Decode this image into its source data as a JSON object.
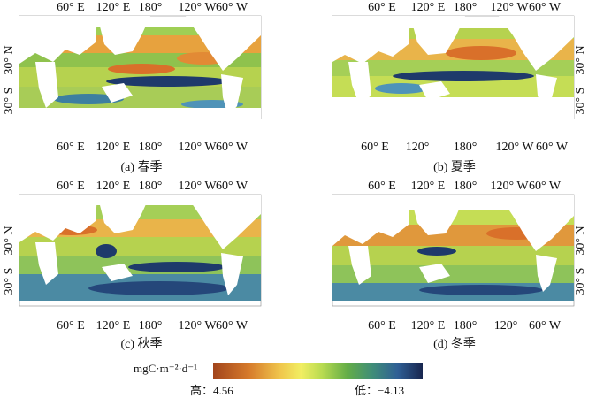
{
  "panels": [
    {
      "id": "a",
      "caption": "(a) 春季",
      "top_ticks": [
        "60° E",
        "120° E",
        "180°",
        "120° W",
        "60° W"
      ],
      "bottom_ticks": [
        "60° E",
        "120° E",
        "180°",
        "120° W",
        "60° W"
      ],
      "left_ticks": [
        "30° N",
        "30° S"
      ],
      "right_ticks": []
    },
    {
      "id": "b",
      "caption": "(b) 夏季",
      "top_ticks": [
        "60° E",
        "120° E",
        "180°",
        "120° W",
        "60° W"
      ],
      "bottom_ticks": [
        "60° E",
        "120°",
        "180°",
        "120° W",
        "60° W"
      ],
      "left_ticks": [],
      "right_ticks": [
        "30° N",
        "30° S"
      ]
    },
    {
      "id": "c",
      "caption": "(c) 秋季",
      "top_ticks": [
        "60° E",
        "120° E",
        "180°",
        "120° W",
        "60° W"
      ],
      "bottom_ticks": [
        "60° E",
        "120° E",
        "180°",
        "120° W",
        "60° W"
      ],
      "left_ticks": [
        "30° N",
        "30° S"
      ],
      "right_ticks": []
    },
    {
      "id": "d",
      "caption": "(d) 冬季",
      "top_ticks": [
        "60° E",
        "120° E",
        "180°",
        "120° W",
        "60° W"
      ],
      "bottom_ticks": [
        "60° E",
        "120° E",
        "180°",
        "120°",
        "60° W"
      ],
      "left_ticks": [],
      "right_ticks": [
        "30° N",
        "30° S"
      ]
    }
  ],
  "legend": {
    "unit": "mgC·m⁻²·d⁻¹",
    "min_label": "高：4.56",
    "max_label": "低：−4.13",
    "colors": [
      "#a2451c",
      "#d67a2b",
      "#f0c64c",
      "#f1ee62",
      "#b8db51",
      "#64ad47",
      "#3f8d78",
      "#2f5f95",
      "#18264f"
    ]
  }
}
